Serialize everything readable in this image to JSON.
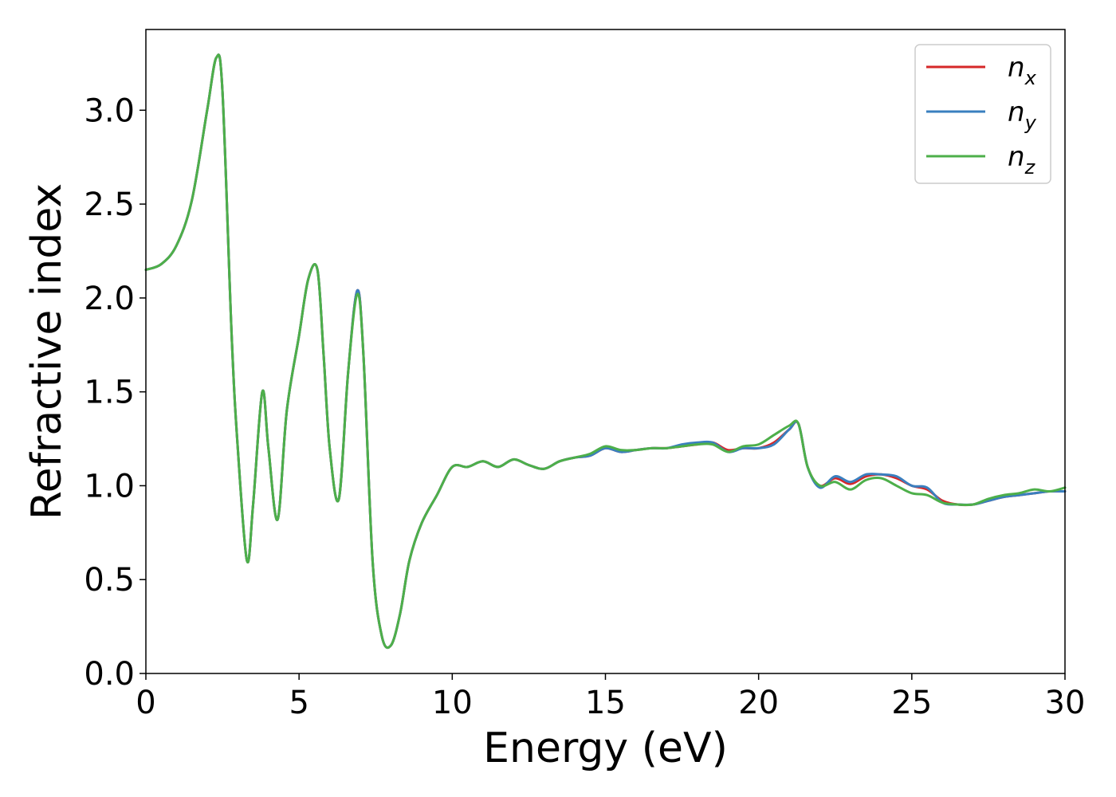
{
  "chart_data": {
    "type": "line",
    "xlabel": "Energy (eV)",
    "ylabel": "Refractive index",
    "xlim": [
      0,
      30
    ],
    "ylim": [
      0,
      3.43
    ],
    "xticks": [
      "0",
      "5",
      "10",
      "15",
      "20",
      "25",
      "30"
    ],
    "yticks": [
      "0.0",
      "0.5",
      "1.0",
      "1.5",
      "2.0",
      "2.5",
      "3.0"
    ],
    "grid": false,
    "legend_position": "top-right",
    "series": [
      {
        "name": "n",
        "subscript": "x",
        "color": "#d62728",
        "x": [
          0,
          0.5,
          1.0,
          1.5,
          2.0,
          2.3,
          2.5,
          2.8,
          3.0,
          3.3,
          3.5,
          3.8,
          4.0,
          4.3,
          4.6,
          5.0,
          5.3,
          5.6,
          5.8,
          6.0,
          6.3,
          6.6,
          6.9,
          7.1,
          7.4,
          7.7,
          8.0,
          8.3,
          8.6,
          9.0,
          9.5,
          10.0,
          10.5,
          11.0,
          11.5,
          12.0,
          12.5,
          13.0,
          13.5,
          14.0,
          14.5,
          15.0,
          15.5,
          16.0,
          16.5,
          17.0,
          17.5,
          18.0,
          18.5,
          19.0,
          19.5,
          20.0,
          20.5,
          21.0,
          21.3,
          21.6,
          22.0,
          22.5,
          23.0,
          23.5,
          24.0,
          24.5,
          25.0,
          25.5,
          26.0,
          26.5,
          27.0,
          27.5,
          28.0,
          28.5,
          29.0,
          29.5,
          30.0
        ],
        "y": [
          2.15,
          2.18,
          2.28,
          2.52,
          3.0,
          3.28,
          3.1,
          1.8,
          1.2,
          0.6,
          0.9,
          1.5,
          1.2,
          0.82,
          1.4,
          1.8,
          2.1,
          2.15,
          1.7,
          1.2,
          0.93,
          1.6,
          2.04,
          1.7,
          0.6,
          0.2,
          0.15,
          0.32,
          0.6,
          0.8,
          0.95,
          1.1,
          1.1,
          1.13,
          1.1,
          1.14,
          1.11,
          1.09,
          1.13,
          1.15,
          1.16,
          1.2,
          1.18,
          1.19,
          1.2,
          1.2,
          1.21,
          1.22,
          1.23,
          1.19,
          1.2,
          1.2,
          1.23,
          1.3,
          1.33,
          1.1,
          1.0,
          1.04,
          1.01,
          1.05,
          1.06,
          1.04,
          1.0,
          0.98,
          0.92,
          0.9,
          0.9,
          0.92,
          0.94,
          0.95,
          0.96,
          0.97,
          0.97
        ]
      },
      {
        "name": "n",
        "subscript": "y",
        "color": "#3a7fbf",
        "x": [
          0,
          0.5,
          1.0,
          1.5,
          2.0,
          2.3,
          2.5,
          2.8,
          3.0,
          3.3,
          3.5,
          3.8,
          4.0,
          4.3,
          4.6,
          5.0,
          5.3,
          5.6,
          5.8,
          6.0,
          6.3,
          6.6,
          6.9,
          7.1,
          7.4,
          7.7,
          8.0,
          8.3,
          8.6,
          9.0,
          9.5,
          10.0,
          10.5,
          11.0,
          11.5,
          12.0,
          12.5,
          13.0,
          13.5,
          14.0,
          14.5,
          15.0,
          15.5,
          16.0,
          16.5,
          17.0,
          17.5,
          18.0,
          18.5,
          19.0,
          19.5,
          20.0,
          20.5,
          21.0,
          21.3,
          21.6,
          22.0,
          22.5,
          23.0,
          23.5,
          24.0,
          24.5,
          25.0,
          25.5,
          26.0,
          26.5,
          27.0,
          27.5,
          28.0,
          28.5,
          29.0,
          29.5,
          30.0
        ],
        "y": [
          2.15,
          2.18,
          2.28,
          2.52,
          3.0,
          3.28,
          3.1,
          1.8,
          1.2,
          0.6,
          0.9,
          1.5,
          1.2,
          0.82,
          1.4,
          1.8,
          2.1,
          2.15,
          1.7,
          1.2,
          0.93,
          1.6,
          2.04,
          1.7,
          0.6,
          0.2,
          0.15,
          0.32,
          0.6,
          0.8,
          0.95,
          1.1,
          1.1,
          1.13,
          1.1,
          1.14,
          1.11,
          1.09,
          1.13,
          1.15,
          1.16,
          1.2,
          1.18,
          1.19,
          1.2,
          1.2,
          1.22,
          1.23,
          1.23,
          1.18,
          1.2,
          1.2,
          1.22,
          1.3,
          1.33,
          1.1,
          0.99,
          1.05,
          1.02,
          1.06,
          1.06,
          1.05,
          1.0,
          0.99,
          0.91,
          0.9,
          0.9,
          0.92,
          0.94,
          0.95,
          0.96,
          0.97,
          0.97
        ]
      },
      {
        "name": "n",
        "subscript": "z",
        "color": "#4daf4a",
        "x": [
          0,
          0.5,
          1.0,
          1.5,
          2.0,
          2.3,
          2.5,
          2.8,
          3.0,
          3.3,
          3.5,
          3.8,
          4.0,
          4.3,
          4.6,
          5.0,
          5.3,
          5.6,
          5.8,
          6.0,
          6.3,
          6.6,
          6.9,
          7.1,
          7.4,
          7.7,
          8.0,
          8.3,
          8.6,
          9.0,
          9.5,
          10.0,
          10.5,
          11.0,
          11.5,
          12.0,
          12.5,
          13.0,
          13.5,
          14.0,
          14.5,
          15.0,
          15.5,
          16.0,
          16.5,
          17.0,
          17.5,
          18.0,
          18.5,
          19.0,
          19.5,
          20.0,
          20.5,
          21.0,
          21.3,
          21.6,
          22.0,
          22.5,
          23.0,
          23.5,
          24.0,
          24.5,
          25.0,
          25.5,
          26.0,
          26.5,
          27.0,
          27.5,
          28.0,
          28.5,
          29.0,
          29.5,
          30.0
        ],
        "y": [
          2.15,
          2.18,
          2.28,
          2.52,
          3.0,
          3.28,
          3.1,
          1.8,
          1.2,
          0.6,
          0.9,
          1.5,
          1.2,
          0.82,
          1.4,
          1.8,
          2.1,
          2.15,
          1.7,
          1.2,
          0.93,
          1.6,
          2.02,
          1.7,
          0.6,
          0.2,
          0.15,
          0.32,
          0.6,
          0.8,
          0.95,
          1.1,
          1.1,
          1.13,
          1.1,
          1.14,
          1.11,
          1.09,
          1.13,
          1.15,
          1.17,
          1.21,
          1.19,
          1.19,
          1.2,
          1.2,
          1.21,
          1.22,
          1.22,
          1.18,
          1.21,
          1.22,
          1.27,
          1.32,
          1.33,
          1.1,
          1.0,
          1.02,
          0.98,
          1.03,
          1.04,
          1.0,
          0.96,
          0.95,
          0.91,
          0.9,
          0.9,
          0.93,
          0.95,
          0.96,
          0.98,
          0.97,
          0.99
        ]
      }
    ]
  }
}
